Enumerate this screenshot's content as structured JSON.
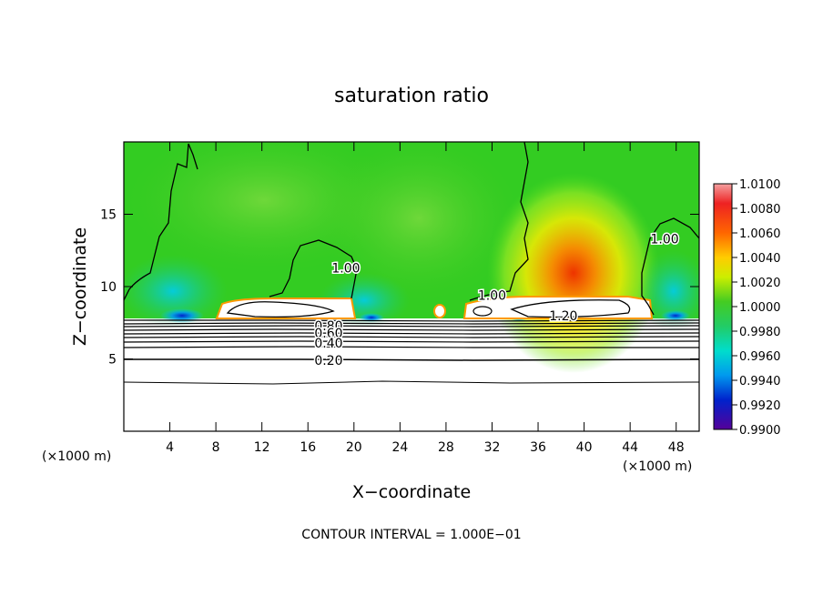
{
  "chart_data": {
    "type": "heatmap",
    "title": "saturation ratio",
    "xlabel": "X−coordinate",
    "ylabel": "Z−coordinate",
    "x_unit_left": "(×1000 m)",
    "x_unit_right": "(×1000 m)",
    "xlim": [
      0,
      50
    ],
    "ylim": [
      0,
      20
    ],
    "xticks": [
      4,
      8,
      12,
      16,
      20,
      24,
      28,
      32,
      36,
      40,
      44,
      48
    ],
    "yticks": [
      5,
      10,
      15
    ],
    "colorbar": {
      "labels": [
        "1.0100",
        "1.0080",
        "1.0060",
        "1.0040",
        "1.0020",
        "1.0000",
        "0.9980",
        "0.9960",
        "0.9940",
        "0.9920",
        "0.9900"
      ],
      "range": [
        0.99,
        1.01
      ]
    },
    "contour_labels": [
      {
        "text": "1.00",
        "x": 19.3,
        "y": 11.3
      },
      {
        "text": "1.00",
        "x": 32.0,
        "y": 9.4
      },
      {
        "text": "1.00",
        "x": 47.0,
        "y": 13.3
      },
      {
        "text": "1.20",
        "x": 38.2,
        "y": 8.0
      },
      {
        "text": "0.80",
        "x": 17.8,
        "y": 7.3
      },
      {
        "text": "0.60",
        "x": 17.8,
        "y": 6.8
      },
      {
        "text": "0.40",
        "x": 17.8,
        "y": 6.1
      },
      {
        "text": "0.20",
        "x": 17.8,
        "y": 4.9
      }
    ],
    "footer": "CONTOUR INTERVAL = 1.000E−01",
    "grid": false
  },
  "colors": {
    "field_base": "#22cc22",
    "warm": [
      "#aaee22",
      "#ffee00",
      "#ffaa00",
      "#ff6600",
      "#ee3300"
    ],
    "cool": [
      "#22ddaa",
      "#00ccee",
      "#0088ff",
      "#0022cc",
      "#330099"
    ]
  }
}
